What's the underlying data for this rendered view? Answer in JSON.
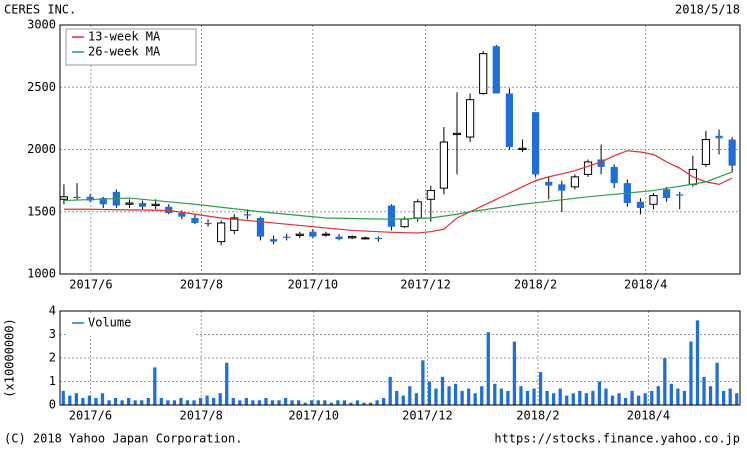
{
  "header": {
    "title": "CERES INC.",
    "date": "2018/5/18"
  },
  "footer": {
    "copyright": "(C) 2018 Yahoo Japan Corporation.",
    "url": "https://stocks.finance.yahoo.co.jp"
  },
  "chart_data": [
    {
      "type": "candlestick",
      "xlim": [
        -0.3,
        51.6
      ],
      "xticks": [
        {
          "value": 2.06,
          "label": "2017/6"
        },
        {
          "value": 10.5,
          "label": "2017/8"
        },
        {
          "value": 19,
          "label": "2017/10"
        },
        {
          "value": 27.6,
          "label": "2017/12"
        },
        {
          "value": 36,
          "label": "2018/2"
        },
        {
          "value": 44.4,
          "label": "2018/4"
        }
      ],
      "ylim": [
        1000,
        3000
      ],
      "yticks": [
        1000,
        1500,
        2000,
        2500,
        3000
      ],
      "grid": true,
      "up_color": "#ffffff",
      "down_color": "#1f6fd8",
      "open": [
        1600,
        1620,
        1620,
        1610,
        1660,
        1560,
        1570,
        1550,
        1540,
        1490,
        1450,
        1410,
        1260,
        1350,
        1480,
        1450,
        1280,
        1300,
        1310,
        1340,
        1320,
        1300,
        1290,
        1290,
        1290,
        1550,
        1380,
        1450,
        1600,
        1690,
        2120,
        2100,
        2450,
        2830,
        2450,
        2000,
        2300,
        1740,
        1720,
        1700,
        1800,
        1920,
        1860,
        1730,
        1580,
        1560,
        1680,
        1640,
        1720,
        1880,
        2110,
        2080
      ],
      "high": [
        1720,
        1730,
        1640,
        1620,
        1680,
        1600,
        1590,
        1600,
        1560,
        1510,
        1480,
        1440,
        1430,
        1480,
        1520,
        1460,
        1310,
        1320,
        1340,
        1360,
        1340,
        1320,
        1310,
        1300,
        1300,
        1560,
        1460,
        1600,
        1710,
        2180,
        2460,
        2450,
        2790,
        2840,
        2490,
        2080,
        2300,
        1780,
        1750,
        1800,
        1920,
        2040,
        1880,
        1760,
        1610,
        1650,
        1700,
        1660,
        1950,
        2150,
        2160,
        2100
      ],
      "low": [
        1560,
        1590,
        1580,
        1530,
        1530,
        1530,
        1520,
        1520,
        1480,
        1440,
        1400,
        1380,
        1230,
        1320,
        1440,
        1270,
        1240,
        1270,
        1290,
        1290,
        1300,
        1270,
        1280,
        1280,
        1260,
        1350,
        1370,
        1420,
        1420,
        1640,
        1800,
        2060,
        2440,
        2450,
        2000,
        1980,
        1780,
        1600,
        1500,
        1680,
        1780,
        1800,
        1690,
        1540,
        1480,
        1520,
        1580,
        1520,
        1700,
        1860,
        1960,
        1820
      ],
      "close": [
        1620,
        1610,
        1590,
        1560,
        1550,
        1570,
        1540,
        1560,
        1490,
        1460,
        1410,
        1400,
        1410,
        1450,
        1470,
        1300,
        1260,
        1290,
        1320,
        1300,
        1320,
        1280,
        1300,
        1290,
        1280,
        1380,
        1440,
        1580,
        1670,
        2060,
        2130,
        2400,
        2770,
        2450,
        2020,
        2010,
        1800,
        1710,
        1670,
        1780,
        1900,
        1860,
        1730,
        1570,
        1530,
        1630,
        1610,
        1630,
        1840,
        2080,
        2090,
        1870
      ],
      "series": [
        {
          "name": "13-week MA",
          "color": "#e03030",
          "values": [
            1520,
            1520,
            1520,
            1518,
            1516,
            1515,
            1514,
            1512,
            1510,
            1495,
            1480,
            1465,
            1450,
            1440,
            1430,
            1420,
            1410,
            1400,
            1390,
            1380,
            1370,
            1360,
            1350,
            1345,
            1340,
            1335,
            1332,
            1330,
            1340,
            1360,
            1450,
            1500,
            1550,
            1600,
            1650,
            1700,
            1750,
            1780,
            1805,
            1830,
            1865,
            1900,
            1950,
            1990,
            1980,
            1960,
            1900,
            1850,
            1780,
            1740,
            1720,
            1770
          ]
        },
        {
          "name": "26-week MA",
          "color": "#2e9e4e",
          "values": [
            1590,
            1594,
            1598,
            1602,
            1606,
            1610,
            1600,
            1590,
            1580,
            1570,
            1560,
            1548,
            1536,
            1524,
            1512,
            1500,
            1490,
            1480,
            1470,
            1460,
            1450,
            1448,
            1446,
            1444,
            1442,
            1440,
            1443,
            1447,
            1450,
            1465,
            1480,
            1500,
            1515,
            1530,
            1545,
            1560,
            1572,
            1584,
            1596,
            1608,
            1620,
            1630,
            1640,
            1650,
            1660,
            1670,
            1688,
            1705,
            1722,
            1740,
            1780,
            1820
          ]
        }
      ]
    },
    {
      "type": "bar",
      "ylabel": "(x10000000)",
      "xlim": [
        -0.5,
        103.5
      ],
      "xticks": [
        {
          "value": 4.15,
          "label": "2017/6"
        },
        {
          "value": 21.1,
          "label": "2017/8"
        },
        {
          "value": 38.3,
          "label": "2017/10"
        },
        {
          "value": 55.7,
          "label": "2017/12"
        },
        {
          "value": 72.6,
          "label": "2018/2"
        },
        {
          "value": 89.5,
          "label": "2018/4"
        }
      ],
      "ylim": [
        0,
        4
      ],
      "yticks": [
        0,
        1,
        2,
        3,
        4
      ],
      "grid": true,
      "series": [
        {
          "name": "Volume",
          "color": "#1f6fd8",
          "values": [
            0.6,
            0.4,
            0.5,
            0.3,
            0.4,
            0.3,
            0.5,
            0.2,
            0.3,
            0.2,
            0.3,
            0.2,
            0.2,
            0.3,
            1.6,
            0.3,
            0.2,
            0.2,
            0.3,
            0.2,
            0.2,
            0.3,
            0.4,
            0.3,
            0.5,
            1.8,
            0.3,
            0.2,
            0.3,
            0.2,
            0.2,
            0.3,
            0.2,
            0.2,
            0.3,
            0.2,
            0.2,
            0.1,
            0.2,
            0.2,
            0.2,
            0.1,
            0.2,
            0.2,
            0.1,
            0.2,
            0.1,
            0.1,
            0.2,
            0.3,
            1.2,
            0.6,
            0.4,
            0.8,
            0.5,
            1.9,
            1.0,
            0.7,
            1.2,
            0.8,
            0.9,
            0.6,
            0.7,
            0.5,
            0.8,
            3.1,
            0.9,
            0.7,
            0.6,
            2.7,
            0.8,
            0.6,
            0.7,
            1.4,
            0.6,
            0.5,
            0.7,
            0.4,
            0.5,
            0.6,
            0.5,
            0.6,
            1.0,
            0.7,
            0.4,
            0.5,
            0.3,
            0.6,
            0.4,
            0.5,
            0.6,
            0.8,
            2.0,
            0.9,
            0.7,
            0.6,
            2.7,
            3.6,
            1.2,
            0.8,
            1.8,
            0.6,
            0.7,
            0.5
          ]
        }
      ]
    }
  ]
}
